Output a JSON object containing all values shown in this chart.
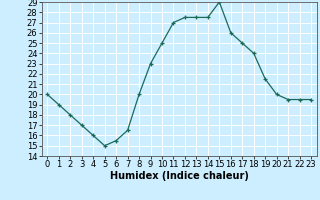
{
  "x": [
    0,
    1,
    2,
    3,
    4,
    5,
    6,
    7,
    8,
    9,
    10,
    11,
    12,
    13,
    14,
    15,
    16,
    17,
    18,
    19,
    20,
    21,
    22,
    23
  ],
  "y": [
    20,
    19,
    18,
    17,
    16,
    15,
    15.5,
    16.5,
    20,
    23,
    25,
    27,
    27.5,
    27.5,
    27.5,
    29,
    26,
    25,
    24,
    21.5,
    20,
    19.5,
    19.5,
    19.5
  ],
  "line_color": "#1a6b5a",
  "marker_color": "#1a6b5a",
  "bg_color": "#cceeff",
  "grid_color": "#ffffff",
  "xlabel": "Humidex (Indice chaleur)",
  "xlim": [
    -0.5,
    23.5
  ],
  "ylim": [
    14,
    29
  ],
  "yticks": [
    14,
    15,
    16,
    17,
    18,
    19,
    20,
    21,
    22,
    23,
    24,
    25,
    26,
    27,
    28,
    29
  ],
  "xticks": [
    0,
    1,
    2,
    3,
    4,
    5,
    6,
    7,
    8,
    9,
    10,
    11,
    12,
    13,
    14,
    15,
    16,
    17,
    18,
    19,
    20,
    21,
    22,
    23
  ],
  "tick_fontsize": 6,
  "label_fontsize": 7,
  "spine_color": "#555555"
}
